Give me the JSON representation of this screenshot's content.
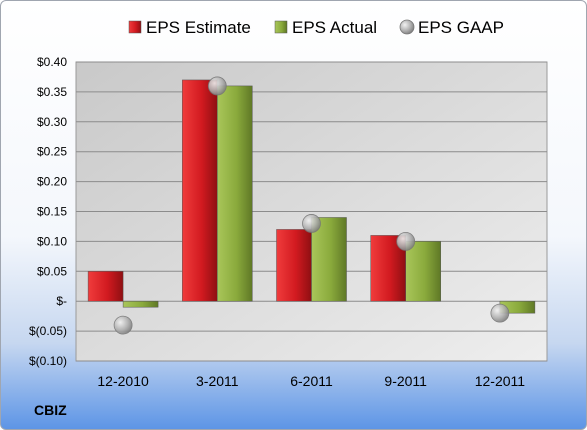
{
  "chart_data": {
    "type": "bar",
    "title": "",
    "xlabel": "",
    "ylabel": "",
    "categories": [
      "12-2010",
      "3-2011",
      "6-2011",
      "9-2011",
      "12-2011"
    ],
    "series": [
      {
        "name": "EPS Estimate",
        "kind": "bar",
        "color": "#c8141c",
        "values": [
          0.05,
          0.37,
          0.12,
          0.11,
          null
        ]
      },
      {
        "name": "EPS Actual",
        "kind": "bar",
        "color": "#8aaa3c",
        "values": [
          -0.01,
          0.36,
          0.14,
          0.1,
          -0.02
        ]
      },
      {
        "name": "EPS GAAP",
        "kind": "marker",
        "color": "#a9a9a9",
        "values": [
          -0.04,
          0.36,
          0.13,
          0.1,
          -0.02
        ]
      }
    ],
    "ylim": [
      -0.1,
      0.4
    ],
    "yticks": [
      0.4,
      0.35,
      0.3,
      0.25,
      0.2,
      0.15,
      0.1,
      0.05,
      0.0,
      -0.05,
      -0.1
    ],
    "ytick_labels": [
      "$0.40",
      "$0.35",
      "$0.30",
      "$0.25",
      "$0.20",
      "$0.15",
      "$0.10",
      "$0.05",
      "$-",
      "$(0.05)",
      "$(0.10)"
    ],
    "grid": true,
    "legend_position": "top"
  },
  "ticker": "CBIZ"
}
